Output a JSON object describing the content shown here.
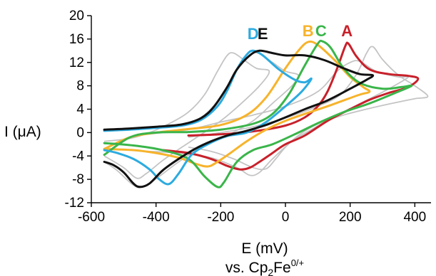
{
  "chart_data": {
    "type": "line",
    "xlabel": "E (mV)",
    "xlabel_sub": "vs. Cp",
    "xlabel_sub_index": "2",
    "xlabel_sub_tail": "Fe",
    "xlabel_sub_sup": "0/+",
    "ylabel": "I (μA)",
    "xlim": [
      -600,
      450
    ],
    "ylim": [
      -12,
      20
    ],
    "x_ticks": [
      -600,
      -400,
      -200,
      0,
      200,
      400
    ],
    "y_ticks": [
      -12,
      -8,
      -4,
      0,
      4,
      8,
      12,
      16,
      20
    ],
    "grid": false,
    "series": [
      {
        "name": "A",
        "color": "#c8202a",
        "points": [
          [
            -300,
            -0.5
          ],
          [
            -200,
            -0.3
          ],
          [
            -100,
            0.2
          ],
          [
            0,
            1.2
          ],
          [
            60,
            2.6
          ],
          [
            100,
            4.5
          ],
          [
            130,
            7.0
          ],
          [
            160,
            11.0
          ],
          [
            185,
            14.8
          ],
          [
            195,
            15.2
          ],
          [
            220,
            13.0
          ],
          [
            260,
            10.8
          ],
          [
            320,
            10.0
          ],
          [
            380,
            9.7
          ],
          [
            410,
            9.2
          ],
          [
            380,
            7.8
          ],
          [
            320,
            6.8
          ],
          [
            260,
            5.6
          ],
          [
            200,
            4.0
          ],
          [
            130,
            2.0
          ],
          [
            60,
            -0.5
          ],
          [
            0,
            -2.0
          ],
          [
            -40,
            -3.5
          ],
          [
            -80,
            -5.0
          ],
          [
            -110,
            -6.0
          ],
          [
            -140,
            -6.3
          ],
          [
            -180,
            -5.7
          ],
          [
            -230,
            -4.5
          ],
          [
            -300,
            -3.5
          ],
          [
            -380,
            -3.0
          ]
        ]
      },
      {
        "name": "B",
        "color": "#f7b32b",
        "points": [
          [
            -560,
            -2.8
          ],
          [
            -480,
            -0.8
          ],
          [
            -400,
            0.0
          ],
          [
            -300,
            0.6
          ],
          [
            -200,
            1.3
          ],
          [
            -120,
            3.0
          ],
          [
            -60,
            6.0
          ],
          [
            0,
            11.0
          ],
          [
            40,
            14.0
          ],
          [
            70,
            15.5
          ],
          [
            100,
            15.0
          ],
          [
            150,
            12.5
          ],
          [
            200,
            9.5
          ],
          [
            240,
            7.8
          ],
          [
            260,
            7.0
          ],
          [
            230,
            6.5
          ],
          [
            180,
            5.5
          ],
          [
            130,
            4.5
          ],
          [
            60,
            3.2
          ],
          [
            0,
            2.0
          ],
          [
            -60,
            0.5
          ],
          [
            -120,
            -1.5
          ],
          [
            -170,
            -3.5
          ],
          [
            -210,
            -5.0
          ],
          [
            -240,
            -5.8
          ],
          [
            -280,
            -5.3
          ],
          [
            -330,
            -4.3
          ],
          [
            -400,
            -3.5
          ],
          [
            -470,
            -3.0
          ],
          [
            -560,
            -2.8
          ]
        ]
      },
      {
        "name": "C",
        "color": "#3ab54a",
        "points": [
          [
            -560,
            -3.8
          ],
          [
            -480,
            -0.8
          ],
          [
            -400,
            0.0
          ],
          [
            -300,
            0.1
          ],
          [
            -200,
            0.5
          ],
          [
            -100,
            1.5
          ],
          [
            -40,
            3.2
          ],
          [
            10,
            6.5
          ],
          [
            60,
            11.5
          ],
          [
            100,
            15.2
          ],
          [
            115,
            15.6
          ],
          [
            140,
            14.5
          ],
          [
            180,
            11.0
          ],
          [
            230,
            8.5
          ],
          [
            300,
            7.5
          ],
          [
            360,
            7.8
          ],
          [
            390,
            8.0
          ],
          [
            340,
            6.8
          ],
          [
            260,
            5.0
          ],
          [
            180,
            3.5
          ],
          [
            100,
            1.6
          ],
          [
            40,
            0.0
          ],
          [
            -40,
            -2.0
          ],
          [
            -100,
            -3.0
          ],
          [
            -150,
            -5.0
          ],
          [
            -190,
            -8.5
          ],
          [
            -210,
            -9.3
          ],
          [
            -250,
            -7.5
          ],
          [
            -300,
            -4.5
          ],
          [
            -380,
            -3.0
          ],
          [
            -470,
            -2.2
          ],
          [
            -560,
            -1.8
          ]
        ]
      },
      {
        "name": "D",
        "color": "#2cabe0",
        "points": [
          [
            -560,
            0.3
          ],
          [
            -480,
            0.5
          ],
          [
            -400,
            0.8
          ],
          [
            -320,
            1.2
          ],
          [
            -260,
            2.2
          ],
          [
            -210,
            4.5
          ],
          [
            -180,
            7.2
          ],
          [
            -150,
            10.8
          ],
          [
            -120,
            13.3
          ],
          [
            -100,
            14.0
          ],
          [
            -70,
            13.2
          ],
          [
            -20,
            10.8
          ],
          [
            30,
            9.0
          ],
          [
            60,
            8.6
          ],
          [
            80,
            9.2
          ],
          [
            50,
            7.0
          ],
          [
            0,
            4.5
          ],
          [
            -60,
            1.8
          ],
          [
            -120,
            0.0
          ],
          [
            -180,
            -0.6
          ],
          [
            -240,
            -2.0
          ],
          [
            -290,
            -3.8
          ],
          [
            -330,
            -7.0
          ],
          [
            -360,
            -8.8
          ],
          [
            -390,
            -8.0
          ],
          [
            -420,
            -6.3
          ],
          [
            -470,
            -4.5
          ],
          [
            -520,
            -3.5
          ],
          [
            -560,
            -3.0
          ]
        ]
      },
      {
        "name": "E",
        "color": "#111111",
        "points": [
          [
            -560,
            0.5
          ],
          [
            -480,
            0.7
          ],
          [
            -400,
            1.0
          ],
          [
            -320,
            1.4
          ],
          [
            -260,
            2.5
          ],
          [
            -220,
            4.5
          ],
          [
            -180,
            7.8
          ],
          [
            -150,
            10.8
          ],
          [
            -110,
            13.2
          ],
          [
            -80,
            14.0
          ],
          [
            -40,
            13.6
          ],
          [
            0,
            13.2
          ],
          [
            60,
            13.2
          ],
          [
            120,
            12.4
          ],
          [
            180,
            11.0
          ],
          [
            230,
            10.0
          ],
          [
            270,
            9.8
          ],
          [
            250,
            9.0
          ],
          [
            200,
            7.5
          ],
          [
            130,
            5.5
          ],
          [
            60,
            4.0
          ],
          [
            0,
            2.6
          ],
          [
            -60,
            1.3
          ],
          [
            -120,
            0.3
          ],
          [
            -180,
            -0.5
          ],
          [
            -230,
            -1.5
          ],
          [
            -280,
            -2.8
          ],
          [
            -330,
            -4.5
          ],
          [
            -380,
            -6.5
          ],
          [
            -420,
            -8.7
          ],
          [
            -450,
            -9.3
          ],
          [
            -470,
            -8.7
          ],
          [
            -500,
            -6.8
          ],
          [
            -530,
            -5.6
          ],
          [
            -560,
            -5.0
          ]
        ]
      }
    ],
    "background_series": [
      {
        "color": "#c4c4c4",
        "points": [
          [
            -560,
            0.5
          ],
          [
            -400,
            0.8
          ],
          [
            -300,
            1.5
          ],
          [
            -240,
            3.5
          ],
          [
            -190,
            7.0
          ],
          [
            -150,
            10.8
          ],
          [
            -110,
            13.2
          ],
          [
            -85,
            13.6
          ],
          [
            -40,
            12.0
          ],
          [
            0,
            10.5
          ],
          [
            40,
            9.8
          ],
          [
            20,
            8.0
          ],
          [
            -40,
            5.0
          ],
          [
            -100,
            2.0
          ],
          [
            -180,
            -0.5
          ],
          [
            -260,
            -2.5
          ],
          [
            -330,
            -5.0
          ],
          [
            -390,
            -7.5
          ],
          [
            -440,
            -9.3
          ],
          [
            -470,
            -9.0
          ],
          [
            -520,
            -6.5
          ],
          [
            -560,
            -5.0
          ]
        ]
      },
      {
        "color": "#c4c4c4",
        "points": [
          [
            -430,
            -0.3
          ],
          [
            -300,
            0.5
          ],
          [
            -200,
            1.8
          ],
          [
            -100,
            3.0
          ],
          [
            0,
            4.5
          ],
          [
            100,
            7.0
          ],
          [
            160,
            10.5
          ],
          [
            200,
            12.0
          ],
          [
            230,
            12.2
          ],
          [
            280,
            10.5
          ],
          [
            350,
            9.5
          ],
          [
            380,
            9.5
          ],
          [
            320,
            7.5
          ],
          [
            250,
            5.5
          ],
          [
            160,
            3.0
          ],
          [
            80,
            0.5
          ],
          [
            20,
            -1.5
          ],
          [
            -40,
            -4.5
          ],
          [
            -80,
            -6.8
          ],
          [
            -110,
            -7.3
          ],
          [
            -150,
            -6.0
          ],
          [
            -230,
            -4.3
          ],
          [
            -330,
            -3.5
          ],
          [
            -430,
            -3.2
          ]
        ]
      },
      {
        "color": "#c4c4c4",
        "points": [
          [
            -300,
            -0.8
          ],
          [
            -200,
            0.0
          ],
          [
            -100,
            1.0
          ],
          [
            0,
            2.5
          ],
          [
            100,
            4.5
          ],
          [
            170,
            6.5
          ],
          [
            220,
            10.0
          ],
          [
            250,
            13.5
          ],
          [
            270,
            14.7
          ],
          [
            300,
            12.5
          ],
          [
            350,
            9.8
          ],
          [
            400,
            8.0
          ],
          [
            440,
            6.2
          ],
          [
            400,
            5.8
          ],
          [
            330,
            5.0
          ],
          [
            250,
            4.0
          ],
          [
            180,
            3.0
          ],
          [
            100,
            1.5
          ],
          [
            40,
            -0.5
          ],
          [
            0,
            -2.5
          ],
          [
            -30,
            -4.5
          ],
          [
            -60,
            -6.2
          ],
          [
            -100,
            -6.0
          ],
          [
            -160,
            -4.5
          ],
          [
            -230,
            -3.2
          ],
          [
            -300,
            -2.5
          ]
        ]
      },
      {
        "color": "#c4c4c4",
        "points": [
          [
            -560,
            -1.5
          ],
          [
            -480,
            -1.0
          ],
          [
            -420,
            0.0
          ],
          [
            -360,
            1.5
          ],
          [
            -300,
            3.5
          ],
          [
            -250,
            6.5
          ],
          [
            -210,
            10.5
          ],
          [
            -180,
            13.2
          ],
          [
            -160,
            13.6
          ],
          [
            -130,
            12.5
          ],
          [
            -90,
            11.0
          ],
          [
            -50,
            10.5
          ],
          [
            -80,
            8.0
          ],
          [
            -140,
            4.8
          ],
          [
            -200,
            2.0
          ],
          [
            -260,
            -0.3
          ],
          [
            -320,
            -2.5
          ],
          [
            -380,
            -4.8
          ],
          [
            -430,
            -7.0
          ],
          [
            -460,
            -7.8
          ],
          [
            -500,
            -6.0
          ],
          [
            -560,
            -4.0
          ]
        ]
      }
    ],
    "series_label_positions": {
      "A": [
        190,
        16.5
      ],
      "B": [
        70,
        16.5
      ],
      "C": [
        110,
        16.5
      ],
      "D": [
        -100,
        16.0
      ],
      "E": [
        -70,
        16.0
      ]
    }
  }
}
